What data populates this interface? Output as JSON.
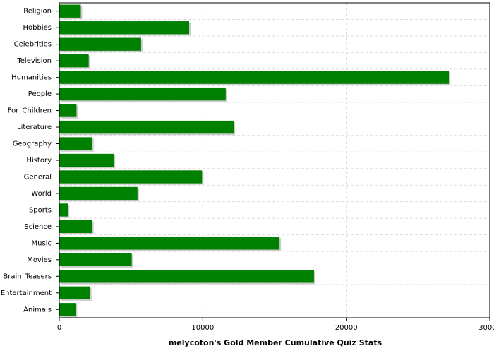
{
  "chart_data": {
    "type": "barh",
    "xlabel": "melycoton's Gold Member Cumulative Quiz Stats",
    "categories": [
      "Religion",
      "Hobbies",
      "Celebrities",
      "Television",
      "Humanities",
      "People",
      "For_Children",
      "Literature",
      "Geography",
      "History",
      "General",
      "World",
      "Sports",
      "Science",
      "Music",
      "Movies",
      "Brain_Teasers",
      "Entertainment",
      "Animals"
    ],
    "values": [
      1500,
      9050,
      5700,
      2050,
      27150,
      11600,
      1200,
      12150,
      2300,
      3800,
      9950,
      5450,
      600,
      2300,
      15350,
      5050,
      17750,
      2150,
      1150
    ],
    "color": "#008000",
    "xlim": [
      0,
      30000
    ],
    "xticks": [
      0,
      10000,
      20000,
      30000
    ],
    "grid": true
  }
}
